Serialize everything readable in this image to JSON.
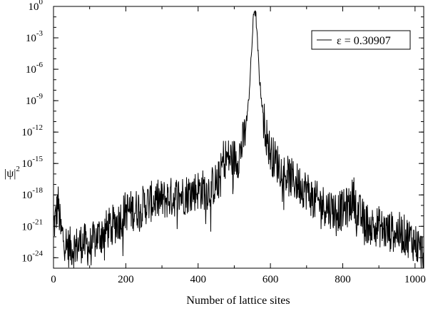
{
  "chart_data": {
    "type": "line",
    "xlabel": "Number of lattice sites",
    "ylabel": {
      "base": "|ψ|",
      "exponent": "2"
    },
    "xlim": [
      0,
      1024
    ],
    "ylim_exponent": [
      -25,
      0
    ],
    "yscale": "log",
    "grid": false,
    "legend_position": "top-right",
    "x_ticks": [
      "0",
      "200",
      "400",
      "600",
      "800",
      "1000"
    ],
    "x_tick_values": [
      0,
      200,
      400,
      600,
      800,
      1000
    ],
    "y_ticks": [
      {
        "base": "10",
        "exp": "0",
        "value_exponent": 0
      },
      {
        "base": "10",
        "exp": "-3",
        "value_exponent": -3
      },
      {
        "base": "10",
        "exp": "-6",
        "value_exponent": -6
      },
      {
        "base": "10",
        "exp": "-9",
        "value_exponent": -9
      },
      {
        "base": "10",
        "exp": "-12",
        "value_exponent": -12
      },
      {
        "base": "10",
        "exp": "-15",
        "value_exponent": -15
      },
      {
        "base": "10",
        "exp": "-18",
        "value_exponent": -18
      },
      {
        "base": "10",
        "exp": "-21",
        "value_exponent": -21
      },
      {
        "base": "10",
        "exp": "-24",
        "value_exponent": -24
      }
    ],
    "series": [
      {
        "name": "ε = 0.30907",
        "color": "#000000",
        "log10_envelope": {
          "x": [
            0,
            8,
            12,
            20,
            40,
            60,
            80,
            100,
            120,
            140,
            160,
            180,
            200,
            220,
            250,
            280,
            300,
            330,
            360,
            400,
            430,
            460,
            470,
            480,
            490,
            500,
            510,
            520,
            530,
            540,
            545,
            550,
            553,
            556,
            560,
            565,
            570,
            580,
            590,
            600,
            620,
            640,
            660,
            680,
            700,
            720,
            750,
            780,
            800,
            820,
            830,
            840,
            860,
            880,
            900,
            920,
            950,
            980,
            1000,
            1010,
            1020,
            1024
          ],
          "y": [
            -21,
            -20,
            -18.5,
            -21.5,
            -23,
            -23,
            -22.5,
            -23,
            -22,
            -21.5,
            -21,
            -20.5,
            -19.5,
            -19.5,
            -19,
            -18.5,
            -18.5,
            -18.2,
            -18,
            -17.5,
            -17.5,
            -16.5,
            -14.5,
            -14.5,
            -14.5,
            -14.5,
            -14.5,
            -13.5,
            -12,
            -9,
            -6,
            -3,
            -1,
            -0.2,
            -1,
            -4,
            -7,
            -10.5,
            -12.5,
            -14,
            -15,
            -16,
            -16.5,
            -17,
            -17.5,
            -18.5,
            -19,
            -19.5,
            -19.5,
            -19,
            -18,
            -19.5,
            -20.5,
            -21,
            -21,
            -21.5,
            -21.5,
            -22,
            -22.5,
            -23,
            -23.5,
            -24
          ]
        }
      }
    ]
  }
}
